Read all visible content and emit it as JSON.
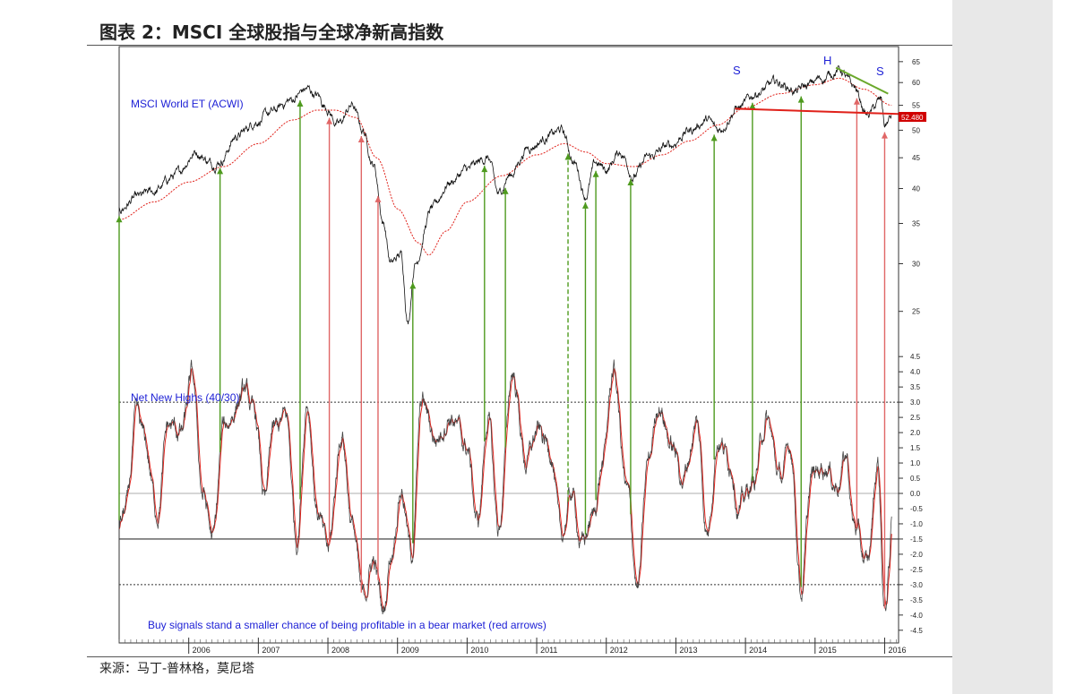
{
  "title": "图表 2：MSCI 全球股指与全球净新高指数",
  "source": "来源：马丁-普林格，莫尼塔",
  "colors": {
    "price": "#111111",
    "ma": "#e0211a",
    "buy_arrow": "#4e9a1e",
    "sell_arrow": "#e06666",
    "text_blue": "#1f22d6",
    "neckline": "#e0211a",
    "trendline": "#6aa82a",
    "price_tag_bg": "#d00000"
  },
  "chart_data": [
    {
      "type": "line",
      "label": "MSCI World ET (ACWI)",
      "y_scale": "log",
      "ylim": [
        22,
        67
      ],
      "yticks": [
        25,
        30,
        35,
        40,
        45,
        50,
        55,
        60,
        65
      ],
      "x_range": [
        2005.0,
        2016.2
      ],
      "x_ticks": [
        "2006",
        "2007",
        "2008",
        "2009",
        "2010",
        "2011",
        "2012",
        "2013",
        "2014",
        "2015",
        "2016"
      ],
      "last_value_tag": "52.480",
      "pattern_labels": [
        "S",
        "H",
        "S"
      ],
      "price_anchors": [
        [
          2005.0,
          37
        ],
        [
          2005.25,
          38.5
        ],
        [
          2005.5,
          39.5
        ],
        [
          2005.8,
          42
        ],
        [
          2006.1,
          46
        ],
        [
          2006.35,
          44
        ],
        [
          2006.45,
          44.5
        ],
        [
          2006.7,
          49
        ],
        [
          2007.0,
          52
        ],
        [
          2007.2,
          53.5
        ],
        [
          2007.45,
          56
        ],
        [
          2007.7,
          58.5
        ],
        [
          2007.85,
          57
        ],
        [
          2007.95,
          55
        ],
        [
          2008.15,
          51
        ],
        [
          2008.35,
          55
        ],
        [
          2008.5,
          50
        ],
        [
          2008.65,
          44
        ],
        [
          2008.8,
          35
        ],
        [
          2008.9,
          30
        ],
        [
          2009.05,
          31
        ],
        [
          2009.15,
          24
        ],
        [
          2009.25,
          30
        ],
        [
          2009.5,
          37
        ],
        [
          2009.75,
          41
        ],
        [
          2010.0,
          43
        ],
        [
          2010.3,
          45
        ],
        [
          2010.45,
          39
        ],
        [
          2010.6,
          42
        ],
        [
          2010.9,
          47
        ],
        [
          2011.2,
          49
        ],
        [
          2011.35,
          50
        ],
        [
          2011.55,
          44
        ],
        [
          2011.7,
          39
        ],
        [
          2011.85,
          44
        ],
        [
          2012.0,
          43
        ],
        [
          2012.2,
          46
        ],
        [
          2012.4,
          42
        ],
        [
          2012.6,
          45
        ],
        [
          2012.9,
          47
        ],
        [
          2013.2,
          50
        ],
        [
          2013.45,
          52
        ],
        [
          2013.6,
          50
        ],
        [
          2013.9,
          54.5
        ],
        [
          2014.2,
          58
        ],
        [
          2014.45,
          60
        ],
        [
          2014.75,
          58
        ],
        [
          2014.85,
          59
        ],
        [
          2015.1,
          61
        ],
        [
          2015.35,
          63
        ],
        [
          2015.55,
          59
        ],
        [
          2015.75,
          53
        ],
        [
          2015.95,
          56
        ],
        [
          2016.0,
          51
        ],
        [
          2016.1,
          52.5
        ]
      ],
      "ma_anchors": [
        [
          2005.0,
          35.5
        ],
        [
          2005.5,
          38
        ],
        [
          2006.0,
          41
        ],
        [
          2006.5,
          43.5
        ],
        [
          2007.0,
          47.5
        ],
        [
          2007.5,
          52
        ],
        [
          2007.85,
          54
        ],
        [
          2008.1,
          54
        ],
        [
          2008.4,
          52.5
        ],
        [
          2008.7,
          45
        ],
        [
          2009.0,
          37
        ],
        [
          2009.3,
          32.5
        ],
        [
          2009.45,
          31
        ],
        [
          2009.7,
          34
        ],
        [
          2010.0,
          38
        ],
        [
          2010.5,
          42
        ],
        [
          2011.0,
          45.5
        ],
        [
          2011.4,
          47.5
        ],
        [
          2011.7,
          46
        ],
        [
          2012.0,
          44
        ],
        [
          2012.4,
          43.5
        ],
        [
          2012.8,
          45.5
        ],
        [
          2013.2,
          48
        ],
        [
          2013.6,
          51
        ],
        [
          2014.0,
          54.5
        ],
        [
          2014.5,
          57.5
        ],
        [
          2015.0,
          59.5
        ],
        [
          2015.35,
          61
        ],
        [
          2015.7,
          58.5
        ],
        [
          2016.1,
          55
        ]
      ]
    },
    {
      "type": "line",
      "label": "Net New Highs (40/30)",
      "ylim": [
        -4.8,
        4.8
      ],
      "yticks": [
        4.5,
        4.0,
        3.5,
        3.0,
        2.5,
        2.0,
        1.5,
        1.0,
        0.5,
        0.0,
        -0.5,
        -1.0,
        -1.5,
        -2.0,
        -2.5,
        -3.0,
        -3.5,
        -4.0,
        -4.5
      ],
      "ytick_labels": [
        "4.5",
        "4.0",
        "3.5",
        "3.0",
        "2.5",
        "2.0",
        "1.5",
        "1.0",
        "0.5",
        "0.0",
        "-0.5",
        "-1.0",
        "-1.5",
        "-2.0",
        "-2.5",
        "-3.0",
        "-3.5",
        "-4.0",
        "-4.5"
      ],
      "reference_levels": [
        3.0,
        0.0,
        -1.5,
        -3.0
      ],
      "annotation": "Buy signals stand a smaller chance of being profitable in a bear market (red arrows)",
      "osc_anchors": [
        [
          2005.0,
          -1.0
        ],
        [
          2005.1,
          -0.5
        ],
        [
          2005.25,
          2.5
        ],
        [
          2005.35,
          1.8
        ],
        [
          2005.55,
          -0.6
        ],
        [
          2005.7,
          2.2
        ],
        [
          2005.9,
          2.0
        ],
        [
          2006.05,
          3.8
        ],
        [
          2006.2,
          0.0
        ],
        [
          2006.35,
          -1.5
        ],
        [
          2006.5,
          2.2
        ],
        [
          2006.8,
          3.3
        ],
        [
          2006.95,
          2.5
        ],
        [
          2007.1,
          -0.3
        ],
        [
          2007.2,
          2.0
        ],
        [
          2007.4,
          2.5
        ],
        [
          2007.55,
          -1.5
        ],
        [
          2007.7,
          3.1
        ],
        [
          2007.85,
          -0.6
        ],
        [
          2008.0,
          -1.9
        ],
        [
          2008.2,
          2.0
        ],
        [
          2008.35,
          -1.0
        ],
        [
          2008.5,
          -3.5
        ],
        [
          2008.65,
          -2.2
        ],
        [
          2008.8,
          -3.9
        ],
        [
          2008.9,
          -2.0
        ],
        [
          2009.05,
          0.2
        ],
        [
          2009.2,
          -2.0
        ],
        [
          2009.35,
          3.0
        ],
        [
          2009.55,
          1.8
        ],
        [
          2009.75,
          2.6
        ],
        [
          2010.0,
          1.5
        ],
        [
          2010.15,
          -1.0
        ],
        [
          2010.3,
          2.5
        ],
        [
          2010.45,
          -1.2
        ],
        [
          2010.65,
          4.0
        ],
        [
          2010.85,
          1.0
        ],
        [
          2011.0,
          2.0
        ],
        [
          2011.2,
          1.5
        ],
        [
          2011.35,
          -1.5
        ],
        [
          2011.5,
          0.0
        ],
        [
          2011.65,
          -1.7
        ],
        [
          2011.8,
          -0.8
        ],
        [
          2011.95,
          1.0
        ],
        [
          2012.1,
          4.1
        ],
        [
          2012.3,
          0.0
        ],
        [
          2012.45,
          -3.1
        ],
        [
          2012.6,
          1.0
        ],
        [
          2012.75,
          3.0
        ],
        [
          2012.95,
          1.5
        ],
        [
          2013.1,
          0.5
        ],
        [
          2013.3,
          2.3
        ],
        [
          2013.45,
          -1.3
        ],
        [
          2013.6,
          1.8
        ],
        [
          2013.8,
          1.0
        ],
        [
          2013.9,
          -0.5
        ],
        [
          2014.1,
          0.3
        ],
        [
          2014.3,
          2.4
        ],
        [
          2014.5,
          0.5
        ],
        [
          2014.65,
          1.5
        ],
        [
          2014.8,
          -3.2
        ],
        [
          2014.95,
          0.5
        ],
        [
          2015.15,
          1.0
        ],
        [
          2015.3,
          0.3
        ],
        [
          2015.45,
          1.2
        ],
        [
          2015.55,
          -1.0
        ],
        [
          2015.75,
          -2.4
        ],
        [
          2015.9,
          1.0
        ],
        [
          2016.0,
          -3.9
        ],
        [
          2016.07,
          -2.5
        ],
        [
          2016.1,
          -0.7
        ]
      ]
    }
  ],
  "signals": [
    {
      "x": 2005.0,
      "type": "buy"
    },
    {
      "x": 2006.45,
      "type": "buy"
    },
    {
      "x": 2007.6,
      "type": "buy"
    },
    {
      "x": 2008.02,
      "type": "sell"
    },
    {
      "x": 2008.48,
      "type": "sell"
    },
    {
      "x": 2008.72,
      "type": "sell"
    },
    {
      "x": 2009.22,
      "type": "buy"
    },
    {
      "x": 2010.25,
      "type": "buy"
    },
    {
      "x": 2010.55,
      "type": "buy"
    },
    {
      "x": 2011.45,
      "type": "buy_dashed"
    },
    {
      "x": 2011.7,
      "type": "buy"
    },
    {
      "x": 2011.85,
      "type": "buy"
    },
    {
      "x": 2012.35,
      "type": "buy"
    },
    {
      "x": 2013.55,
      "type": "buy"
    },
    {
      "x": 2014.1,
      "type": "buy"
    },
    {
      "x": 2014.8,
      "type": "buy"
    },
    {
      "x": 2015.6,
      "type": "sell"
    },
    {
      "x": 2016.0,
      "type": "sell"
    }
  ]
}
